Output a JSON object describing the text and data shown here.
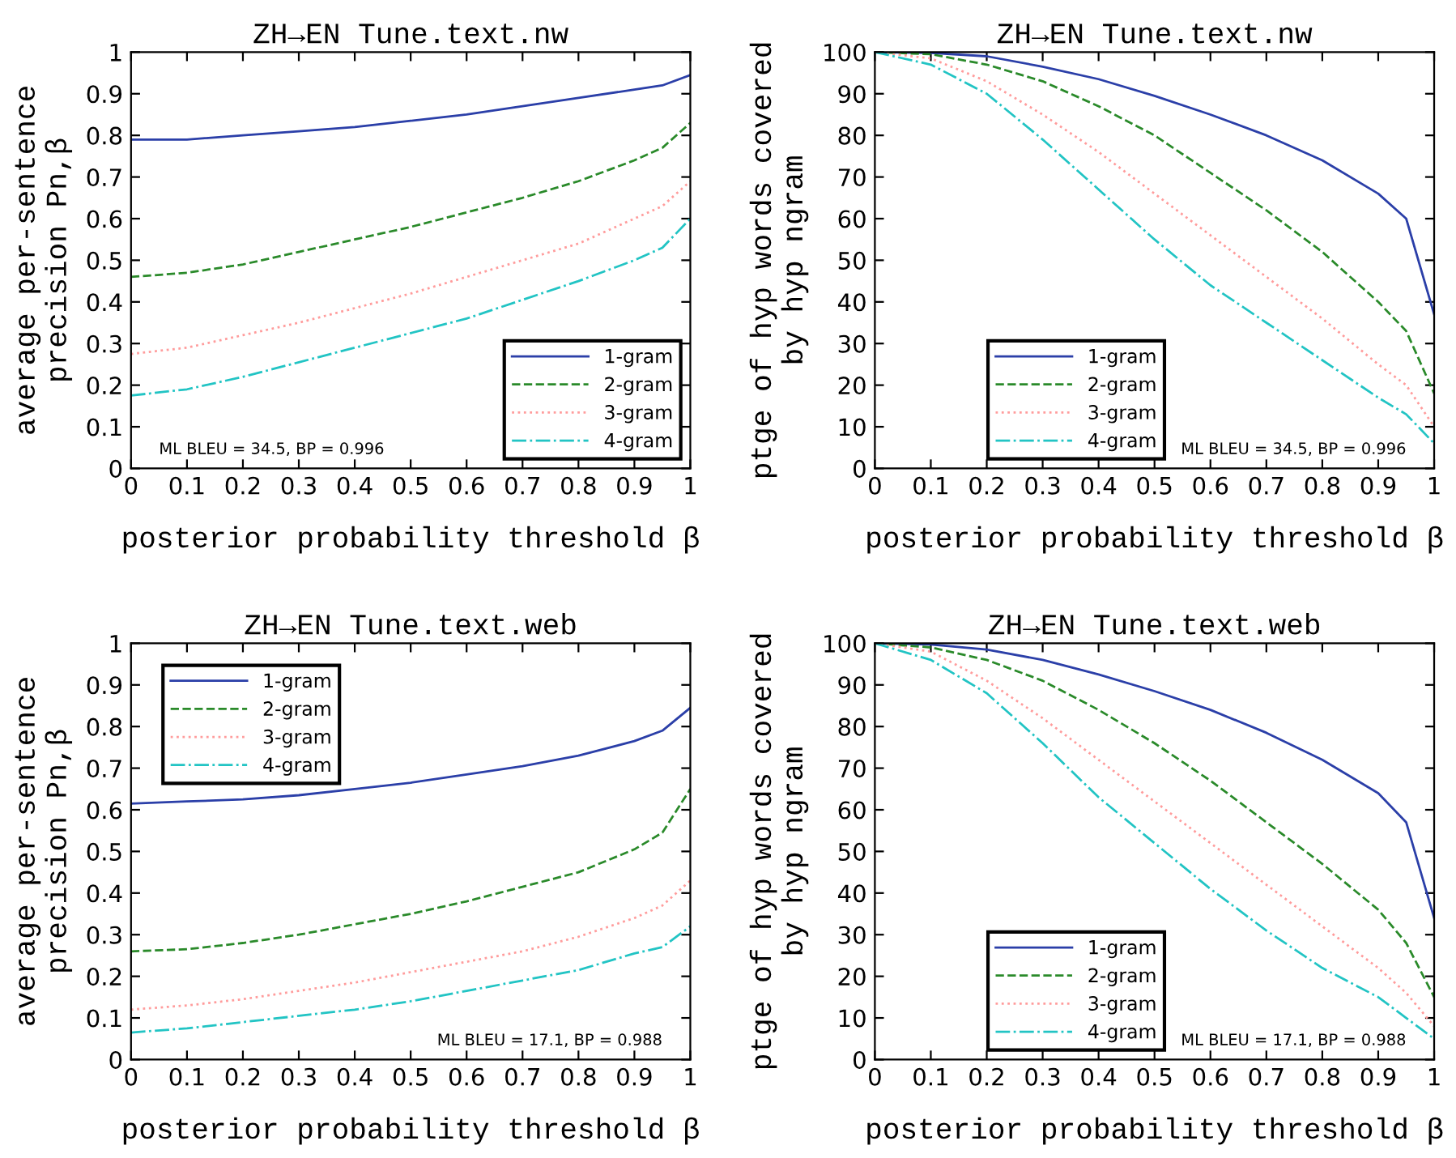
{
  "chart_data": [
    {
      "type": "line",
      "title": "ZH→EN Tune.text.nw",
      "xlabel": "posterior probability threshold β",
      "ylabel": "average per-sentence\nprecision Pn,β",
      "x": [
        0,
        0.1,
        0.2,
        0.3,
        0.4,
        0.5,
        0.6,
        0.7,
        0.8,
        0.9,
        0.95,
        1
      ],
      "series": [
        {
          "name": "1-gram",
          "color": "#2b3fa8",
          "line_style": "solid",
          "values": [
            0.79,
            0.79,
            0.8,
            0.81,
            0.82,
            0.835,
            0.85,
            0.87,
            0.89,
            0.91,
            0.92,
            0.945
          ]
        },
        {
          "name": "2-gram",
          "color": "#2a8a2a",
          "line_style": "dashed",
          "values": [
            0.46,
            0.47,
            0.49,
            0.52,
            0.55,
            0.58,
            0.615,
            0.65,
            0.69,
            0.74,
            0.77,
            0.83
          ]
        },
        {
          "name": "3-gram",
          "color": "#ff9c9c",
          "line_style": "dotted",
          "values": [
            0.275,
            0.29,
            0.32,
            0.35,
            0.385,
            0.42,
            0.46,
            0.5,
            0.54,
            0.6,
            0.63,
            0.69
          ]
        },
        {
          "name": "4-gram",
          "color": "#22c4c4",
          "line_style": "dashdot",
          "values": [
            0.175,
            0.19,
            0.22,
            0.255,
            0.29,
            0.325,
            0.36,
            0.405,
            0.45,
            0.5,
            0.53,
            0.6
          ]
        }
      ],
      "xlim": [
        0,
        1
      ],
      "ylim": [
        0,
        1
      ],
      "xticks": [
        0,
        0.1,
        0.2,
        0.3,
        0.4,
        0.5,
        0.6,
        0.7,
        0.8,
        0.9,
        1
      ],
      "yticks": [
        0,
        0.1,
        0.2,
        0.3,
        0.4,
        0.5,
        0.6,
        0.7,
        0.8,
        0.9,
        1
      ],
      "annotations": [
        "ML BLEU = 34.5, BP = 0.996"
      ],
      "legend": "bottom right",
      "grid": false
    },
    {
      "type": "line",
      "title": "ZH→EN Tune.text.nw",
      "xlabel": "posterior probability threshold β",
      "ylabel": "ptge of hyp words covered\nby hyp ngram",
      "x": [
        0,
        0.1,
        0.2,
        0.3,
        0.4,
        0.5,
        0.6,
        0.7,
        0.8,
        0.9,
        0.95,
        1
      ],
      "series": [
        {
          "name": "1-gram",
          "color": "#2b3fa8",
          "line_style": "solid",
          "values": [
            100,
            99.8,
            99,
            96.5,
            93.5,
            89.5,
            85,
            80,
            74,
            66,
            60,
            37
          ]
        },
        {
          "name": "2-gram",
          "color": "#2a8a2a",
          "line_style": "dashed",
          "values": [
            100,
            99.5,
            97,
            93,
            87,
            80,
            71,
            62,
            52,
            40,
            33,
            18
          ]
        },
        {
          "name": "3-gram",
          "color": "#ff9c9c",
          "line_style": "dotted",
          "values": [
            100,
            98.5,
            93,
            85,
            76,
            66,
            56,
            46,
            36,
            25,
            20,
            10
          ]
        },
        {
          "name": "4-gram",
          "color": "#22c4c4",
          "line_style": "dashdot",
          "values": [
            100,
            97,
            90,
            79,
            67,
            55,
            44,
            35,
            26,
            17,
            13,
            6
          ]
        }
      ],
      "xlim": [
        0,
        1
      ],
      "ylim": [
        0,
        100
      ],
      "xticks": [
        0,
        0.1,
        0.2,
        0.3,
        0.4,
        0.5,
        0.6,
        0.7,
        0.8,
        0.9,
        1
      ],
      "yticks": [
        0,
        10,
        20,
        30,
        40,
        50,
        60,
        70,
        80,
        90,
        100
      ],
      "annotations": [
        "ML BLEU = 34.5, BP = 0.996"
      ],
      "legend": "bottom",
      "grid": false
    },
    {
      "type": "line",
      "title": "ZH→EN Tune.text.web",
      "xlabel": "posterior probability threshold β",
      "ylabel": "average per-sentence\nprecision Pn,β",
      "x": [
        0,
        0.1,
        0.2,
        0.3,
        0.4,
        0.5,
        0.6,
        0.7,
        0.8,
        0.9,
        0.95,
        1
      ],
      "series": [
        {
          "name": "1-gram",
          "color": "#2b3fa8",
          "line_style": "solid",
          "values": [
            0.615,
            0.62,
            0.625,
            0.635,
            0.65,
            0.665,
            0.685,
            0.705,
            0.73,
            0.765,
            0.79,
            0.845
          ]
        },
        {
          "name": "2-gram",
          "color": "#2a8a2a",
          "line_style": "dashed",
          "values": [
            0.26,
            0.265,
            0.28,
            0.3,
            0.325,
            0.35,
            0.38,
            0.415,
            0.45,
            0.505,
            0.545,
            0.65
          ]
        },
        {
          "name": "3-gram",
          "color": "#ff9c9c",
          "line_style": "dotted",
          "values": [
            0.12,
            0.13,
            0.145,
            0.165,
            0.185,
            0.21,
            0.235,
            0.26,
            0.295,
            0.34,
            0.37,
            0.43
          ]
        },
        {
          "name": "4-gram",
          "color": "#22c4c4",
          "line_style": "dashdot",
          "values": [
            0.065,
            0.075,
            0.09,
            0.105,
            0.12,
            0.14,
            0.165,
            0.19,
            0.215,
            0.255,
            0.27,
            0.32
          ]
        }
      ],
      "xlim": [
        0,
        1
      ],
      "ylim": [
        0,
        1
      ],
      "xticks": [
        0,
        0.1,
        0.2,
        0.3,
        0.4,
        0.5,
        0.6,
        0.7,
        0.8,
        0.9,
        1
      ],
      "yticks": [
        0,
        0.1,
        0.2,
        0.3,
        0.4,
        0.5,
        0.6,
        0.7,
        0.8,
        0.9,
        1
      ],
      "annotations": [
        "ML BLEU = 17.1, BP = 0.988"
      ],
      "legend": "top left",
      "grid": false
    },
    {
      "type": "line",
      "title": "ZH→EN Tune.text.web",
      "xlabel": "posterior probability threshold β",
      "ylabel": "ptge of hyp words covered\nby hyp ngram",
      "x": [
        0,
        0.1,
        0.2,
        0.3,
        0.4,
        0.5,
        0.6,
        0.7,
        0.8,
        0.9,
        0.95,
        1
      ],
      "series": [
        {
          "name": "1-gram",
          "color": "#2b3fa8",
          "line_style": "solid",
          "values": [
            100,
            99.7,
            98.5,
            96,
            92.5,
            88.5,
            84,
            78.5,
            72,
            64,
            57,
            34
          ]
        },
        {
          "name": "2-gram",
          "color": "#2a8a2a",
          "line_style": "dashed",
          "values": [
            100,
            99,
            96,
            91,
            84,
            76,
            67,
            57,
            47,
            36,
            28,
            15
          ]
        },
        {
          "name": "3-gram",
          "color": "#ff9c9c",
          "line_style": "dotted",
          "values": [
            100,
            98,
            91,
            82,
            72,
            62,
            52,
            42,
            32,
            22,
            16,
            8
          ]
        },
        {
          "name": "4-gram",
          "color": "#22c4c4",
          "line_style": "dashdot",
          "values": [
            100,
            96,
            88,
            76,
            63,
            52,
            41,
            31,
            22,
            15,
            10,
            5
          ]
        }
      ],
      "xlim": [
        0,
        1
      ],
      "ylim": [
        0,
        100
      ],
      "xticks": [
        0,
        0.1,
        0.2,
        0.3,
        0.4,
        0.5,
        0.6,
        0.7,
        0.8,
        0.9,
        1
      ],
      "yticks": [
        0,
        10,
        20,
        30,
        40,
        50,
        60,
        70,
        80,
        90,
        100
      ],
      "annotations": [
        "ML BLEU = 17.1, BP = 0.988"
      ],
      "legend": "bottom",
      "grid": false
    }
  ]
}
